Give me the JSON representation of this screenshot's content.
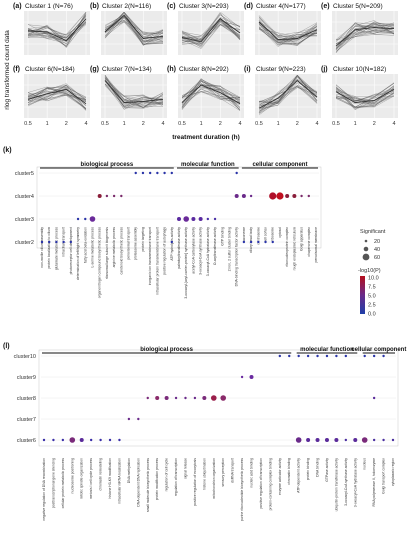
{
  "figure": {
    "ylabel": "rlog transformed count data",
    "xlabel": "treatment duration (h)",
    "panel_k_label": "(k)",
    "panel_l_label": "(l)"
  },
  "chart_data": [
    {
      "type": "line",
      "panels": [
        {
          "label": "(a)",
          "title": "Cluster 1 (N=76)",
          "x": [
            0.5,
            1,
            2,
            4
          ],
          "mean": [
            0.2,
            0.1,
            -0.7,
            1.3
          ],
          "ylim": [
            -2,
            2
          ]
        },
        {
          "label": "(b)",
          "title": "Cluster 2(N=116)",
          "x": [
            0.5,
            1,
            2,
            4
          ],
          "mean": [
            0.1,
            1.6,
            -0.5,
            -0.3
          ],
          "ylim": [
            -2,
            2
          ]
        },
        {
          "label": "(c)",
          "title": "Cluster 3(N=293)",
          "x": [
            0.5,
            1,
            2,
            4
          ],
          "mean": [
            -0.4,
            -0.8,
            1.3,
            0.0
          ],
          "ylim": [
            -2,
            2
          ]
        },
        {
          "label": "(d)",
          "title": "Cluster 4(N=177)",
          "x": [
            0.5,
            1,
            2,
            4
          ],
          "mean": [
            1.0,
            -0.6,
            -0.5,
            0.3
          ],
          "ylim": [
            -2,
            2
          ]
        },
        {
          "label": "(e)",
          "title": "Cluster 5(N=209)",
          "x": [
            0.5,
            1,
            2,
            4
          ],
          "mean": [
            -1.2,
            0.3,
            0.5,
            0.4
          ],
          "ylim": [
            -2,
            2
          ]
        },
        {
          "label": "(f)",
          "title": "Cluster 6(N=184)",
          "x": [
            0.5,
            1,
            2,
            4
          ],
          "mean": [
            -0.3,
            0.2,
            0.6,
            -0.7
          ],
          "ylim": [
            -2,
            2
          ]
        },
        {
          "label": "(g)",
          "title": "Cluster 7(N=134)",
          "x": [
            0.5,
            1,
            2,
            4
          ],
          "mean": [
            1.4,
            -0.6,
            -0.5,
            -0.3
          ],
          "ylim": [
            -2,
            2
          ]
        },
        {
          "label": "(h)",
          "title": "Cluster 8(N=292)",
          "x": [
            0.5,
            1,
            2,
            4
          ],
          "mean": [
            -0.6,
            1.0,
            0.3,
            -0.7
          ],
          "ylim": [
            -2,
            2
          ]
        },
        {
          "label": "(i)",
          "title": "Cluster 9(N=223)",
          "x": [
            0.5,
            1,
            2,
            4
          ],
          "mean": [
            -1.1,
            -0.2,
            1.4,
            -0.1
          ],
          "ylim": [
            -2,
            2
          ]
        },
        {
          "label": "(j)",
          "title": "Cluster 10(N=182)",
          "x": [
            0.5,
            1,
            2,
            4
          ],
          "mean": [
            0.4,
            -0.6,
            -0.4,
            0.6
          ],
          "ylim": [
            -2,
            2
          ]
        }
      ],
      "x_ticks": [
        "0.5",
        "1",
        "2",
        "4"
      ],
      "grid": true
    },
    {
      "type": "scatter",
      "panel": "(k)",
      "clusters": [
        "cluster5",
        "cluster4",
        "cluster3",
        "cluster2"
      ],
      "categories": [
        {
          "name": "biological process",
          "terms": [
            "non-motile cilium assembly",
            "protein localization to cilium",
            "glutamate metabolic process",
            "intraciliary transport",
            "photoreceptor cell development",
            "determination of left/right symmetry",
            "fatty acid beta-oxidation",
            "L-serine metabolic process",
            "organonitrogen compound biosynthetic process",
            "ribosomal large subunit biogenesis",
            "arginine metabolic process",
            "carotenoid biosynthetic process",
            "peroxisomal transport",
            "proteasome assembly",
            "protein targeting",
            "inorganic ion transmembrane transport",
            "intracellular protein transmembrane transport",
            "positive regulation of autophagy",
            "ATP hydrolysis activity"
          ]
        },
        {
          "name": "molecular function",
          "terms": [
            "palmitoyltransferase activity",
            "3-oxoacyl-[acyl-carrier-protein] synthase activity",
            "acetyl-CoA carboxylase activity",
            "3-oxoacyl-CoA synthase activity",
            "3-oxoacyl-CoA hydratase activity",
            "O-acyltransferase activity",
            "GTP binding",
            "2 iron, 2 sulfur cluster binding",
            "DNA-binding transcription factor activity"
          ]
        },
        {
          "name": "cellular component",
          "terms": [
            "axoneme",
            "ciliary basal body",
            "centrosome",
            "cell cortex",
            "ribosome",
            "cytosol",
            "ribonucleoprotein complex",
            "rough endoplasmic reticulum",
            "Golgi apparatus",
            "chaperone complex",
            "peroxisomal membrane"
          ]
        }
      ],
      "points": [
        {
          "cluster": "cluster5",
          "term": 13,
          "size": 1,
          "color": "#2a34a8"
        },
        {
          "cluster": "cluster5",
          "term": 14,
          "size": 1,
          "color": "#2a34a8"
        },
        {
          "cluster": "cluster5",
          "term": 15,
          "size": 1,
          "color": "#2a34a8"
        },
        {
          "cluster": "cluster5",
          "term": 16,
          "size": 1,
          "color": "#2a34a8"
        },
        {
          "cluster": "cluster5",
          "term": 17,
          "size": 1,
          "color": "#2a34a8"
        },
        {
          "cluster": "cluster5",
          "term": 18,
          "size": 1,
          "color": "#2a34a8"
        },
        {
          "cluster": "cluster5",
          "term": 27,
          "size": 1,
          "color": "#2a34a8"
        },
        {
          "cluster": "cluster4",
          "term": 8,
          "size": 2,
          "color": "#8a1e3a"
        },
        {
          "cluster": "cluster4",
          "term": 9,
          "size": 1,
          "color": "#7a2a6a"
        },
        {
          "cluster": "cluster4",
          "term": 10,
          "size": 1,
          "color": "#7a2a6a"
        },
        {
          "cluster": "cluster4",
          "term": 11,
          "size": 1,
          "color": "#7a2a6a"
        },
        {
          "cluster": "cluster4",
          "term": 27,
          "size": 2,
          "color": "#6a2a8a"
        },
        {
          "cluster": "cluster4",
          "term": 28,
          "size": 2,
          "color": "#6a2a8a"
        },
        {
          "cluster": "cluster4",
          "term": 29,
          "size": 1,
          "color": "#6a2a8a"
        },
        {
          "cluster": "cluster4",
          "term": 32,
          "size": 4,
          "color": "#b0102a"
        },
        {
          "cluster": "cluster4",
          "term": 33,
          "size": 4,
          "color": "#c01020"
        },
        {
          "cluster": "cluster4",
          "term": 34,
          "size": 2,
          "color": "#8a1e3a"
        },
        {
          "cluster": "cluster4",
          "term": 35,
          "size": 2,
          "color": "#8a1e3a"
        },
        {
          "cluster": "cluster4",
          "term": 36,
          "size": 1,
          "color": "#7a2a6a"
        },
        {
          "cluster": "cluster4",
          "term": 37,
          "size": 1,
          "color": "#7a2a6a"
        },
        {
          "cluster": "cluster3",
          "term": 5,
          "size": 1,
          "color": "#2a34a8"
        },
        {
          "cluster": "cluster3",
          "term": 6,
          "size": 1,
          "color": "#2a34a8"
        },
        {
          "cluster": "cluster3",
          "term": 7,
          "size": 3,
          "color": "#6a2a9a"
        },
        {
          "cluster": "cluster3",
          "term": 19,
          "size": 2,
          "color": "#5a2aa0"
        },
        {
          "cluster": "cluster3",
          "term": 20,
          "size": 3,
          "color": "#6a2a9a"
        },
        {
          "cluster": "cluster3",
          "term": 21,
          "size": 2,
          "color": "#5a2aa0"
        },
        {
          "cluster": "cluster3",
          "term": 22,
          "size": 2,
          "color": "#5a2aa0"
        },
        {
          "cluster": "cluster3",
          "term": 23,
          "size": 1,
          "color": "#4a30a8"
        },
        {
          "cluster": "cluster3",
          "term": 24,
          "size": 1,
          "color": "#4a30a8"
        },
        {
          "cluster": "cluster2",
          "term": 0,
          "size": 1,
          "color": "#2a34a8"
        },
        {
          "cluster": "cluster2",
          "term": 1,
          "size": 1,
          "color": "#2a34a8"
        },
        {
          "cluster": "cluster2",
          "term": 2,
          "size": 1,
          "color": "#2a34a8"
        },
        {
          "cluster": "cluster2",
          "term": 3,
          "size": 1,
          "color": "#2a34a8"
        },
        {
          "cluster": "cluster2",
          "term": 4,
          "size": 1,
          "color": "#2a34a8"
        },
        {
          "cluster": "cluster2",
          "term": 18,
          "size": 1,
          "color": "#2a34a8"
        },
        {
          "cluster": "cluster2",
          "term": 28,
          "size": 1,
          "color": "#2a34a8"
        },
        {
          "cluster": "cluster2",
          "term": 29,
          "size": 1,
          "color": "#2a34a8"
        },
        {
          "cluster": "cluster2",
          "term": 30,
          "size": 1,
          "color": "#2a34a8"
        },
        {
          "cluster": "cluster2",
          "term": 31,
          "size": 1,
          "color": "#2a34a8"
        },
        {
          "cluster": "cluster2",
          "term": 32,
          "size": 1,
          "color": "#2a34a8"
        }
      ]
    },
    {
      "type": "scatter",
      "panel": "(l)",
      "clusters": [
        "cluster10",
        "cluster9",
        "cluster8",
        "cluster7",
        "cluster6"
      ],
      "categories": [
        {
          "name": "biological process",
          "terms": [
            "negative regulation of DNA recombination",
            "posttranscriptional gene silencing",
            "cellular protein metabolic process",
            "nucleosome positioning",
            "mitotic spindle organization",
            "meiosis I cell cycle process",
            "chromatin remodeling",
            "histone H3-K9 modification",
            "intracellular mRNA localization",
            "DNA methylation",
            "DNA-dependent DNA replication",
            "small molecule biosynthetic process",
            "protein modification process",
            "regulation of cell cycle",
            "regulation of transcription",
            "signal release",
            "positive regulation of exocytosis",
            "histone ubiquitination",
            "mitochondrion organization",
            "sensory perception",
            "dsRNA transport",
            "purine ribonucleotide biosynthetic process",
            "nucleic acid binding",
            "positive regulation of transcription",
            "protein-containing complex binding",
            "enzyme activator activity",
            "chromatin binding"
          ]
        },
        {
          "name": "molecular function",
          "terms": [
            "ATP-dependent activity",
            "protein binding",
            "DNA binding",
            "GTPase activity",
            "ubiquitin-protein transferase activity",
            "3-oxoacyl-CoA synthase activity",
            "3-oxoacyl-CoA hydratase activity"
          ]
        },
        {
          "name": "cellular component",
          "terms": [
            "nucleus",
            "RNA polymerase II, holoenzyme",
            "Golgi transport complex",
            "cytoplasmic region"
          ]
        }
      ],
      "points": [
        {
          "cluster": "cluster10",
          "term": 25,
          "size": 1,
          "color": "#2a34a8"
        },
        {
          "cluster": "cluster10",
          "term": 26,
          "size": 1,
          "color": "#2a34a8"
        },
        {
          "cluster": "cluster10",
          "term": 27,
          "size": 1,
          "color": "#2a34a8"
        },
        {
          "cluster": "cluster10",
          "term": 28,
          "size": 1,
          "color": "#2a34a8"
        },
        {
          "cluster": "cluster10",
          "term": 29,
          "size": 1,
          "color": "#2a34a8"
        },
        {
          "cluster": "cluster10",
          "term": 30,
          "size": 1,
          "color": "#2a34a8"
        },
        {
          "cluster": "cluster10",
          "term": 31,
          "size": 1,
          "color": "#2a34a8"
        },
        {
          "cluster": "cluster10",
          "term": 32,
          "size": 1,
          "color": "#2a34a8"
        },
        {
          "cluster": "cluster10",
          "term": 34,
          "size": 1,
          "color": "#2a34a8"
        },
        {
          "cluster": "cluster10",
          "term": 35,
          "size": 1,
          "color": "#2a34a8"
        },
        {
          "cluster": "cluster10",
          "term": 36,
          "size": 1,
          "color": "#2a34a8"
        },
        {
          "cluster": "cluster9",
          "term": 21,
          "size": 1,
          "color": "#6a2aa0"
        },
        {
          "cluster": "cluster9",
          "term": 22,
          "size": 2,
          "color": "#6a2aa0"
        },
        {
          "cluster": "cluster8",
          "term": 11,
          "size": 1,
          "color": "#7a2a7a"
        },
        {
          "cluster": "cluster8",
          "term": 12,
          "size": 2,
          "color": "#8a2a6a"
        },
        {
          "cluster": "cluster8",
          "term": 13,
          "size": 2,
          "color": "#7a2a7a"
        },
        {
          "cluster": "cluster8",
          "term": 14,
          "size": 1,
          "color": "#6a2a8a"
        },
        {
          "cluster": "cluster8",
          "term": 15,
          "size": 1,
          "color": "#6a2a8a"
        },
        {
          "cluster": "cluster8",
          "term": 16,
          "size": 1,
          "color": "#6a2a8a"
        },
        {
          "cluster": "cluster8",
          "term": 17,
          "size": 2,
          "color": "#7a2a7a"
        },
        {
          "cluster": "cluster8",
          "term": 18,
          "size": 3,
          "color": "#9a1e4a"
        },
        {
          "cluster": "cluster8",
          "term": 19,
          "size": 3,
          "color": "#8a2a6a"
        },
        {
          "cluster": "cluster8",
          "term": 35,
          "size": 1,
          "color": "#5a2a9a"
        },
        {
          "cluster": "cluster7",
          "term": 9,
          "size": 1,
          "color": "#6a2a8a"
        },
        {
          "cluster": "cluster7",
          "term": 10,
          "size": 1,
          "color": "#6a2a8a"
        },
        {
          "cluster": "cluster6",
          "term": 0,
          "size": 1,
          "color": "#3a2ea8"
        },
        {
          "cluster": "cluster6",
          "term": 1,
          "size": 1,
          "color": "#3a2ea8"
        },
        {
          "cluster": "cluster6",
          "term": 2,
          "size": 1,
          "color": "#3a2ea8"
        },
        {
          "cluster": "cluster6",
          "term": 3,
          "size": 3,
          "color": "#7a2a7a"
        },
        {
          "cluster": "cluster6",
          "term": 4,
          "size": 2,
          "color": "#5a2a9a"
        },
        {
          "cluster": "cluster6",
          "term": 5,
          "size": 1,
          "color": "#3a2ea8"
        },
        {
          "cluster": "cluster6",
          "term": 6,
          "size": 1,
          "color": "#3a2ea8"
        },
        {
          "cluster": "cluster6",
          "term": 7,
          "size": 1,
          "color": "#3a2ea8"
        },
        {
          "cluster": "cluster6",
          "term": 8,
          "size": 1,
          "color": "#3a2ea8"
        },
        {
          "cluster": "cluster6",
          "term": 27,
          "size": 3,
          "color": "#6a2a8a"
        },
        {
          "cluster": "cluster6",
          "term": 28,
          "size": 2,
          "color": "#5a2a9a"
        },
        {
          "cluster": "cluster6",
          "term": 29,
          "size": 2,
          "color": "#5a2a9a"
        },
        {
          "cluster": "cluster6",
          "term": 30,
          "size": 2,
          "color": "#5a2a9a"
        },
        {
          "cluster": "cluster6",
          "term": 31,
          "size": 2,
          "color": "#5a2a9a"
        },
        {
          "cluster": "cluster6",
          "term": 32,
          "size": 1,
          "color": "#4a2ea0"
        },
        {
          "cluster": "cluster6",
          "term": 33,
          "size": 2,
          "color": "#5a2a9a"
        },
        {
          "cluster": "cluster6",
          "term": 34,
          "size": 3,
          "color": "#7a2a7a"
        },
        {
          "cluster": "cluster6",
          "term": 35,
          "size": 1,
          "color": "#4a2ea0"
        },
        {
          "cluster": "cluster6",
          "term": 36,
          "size": 1,
          "color": "#4a2ea0"
        },
        {
          "cluster": "cluster6",
          "term": 37,
          "size": 1,
          "color": "#4a2ea0"
        }
      ]
    }
  ],
  "legend": {
    "size_title": "Significant",
    "size_values": [
      "20",
      "40",
      "60"
    ],
    "color_title": "-log10(P)",
    "color_ticks": [
      "10.0",
      "7.5",
      "5.0",
      "2.5",
      "0.0"
    ],
    "color_low": "#1f3fa8",
    "color_high": "#b50f1c"
  }
}
